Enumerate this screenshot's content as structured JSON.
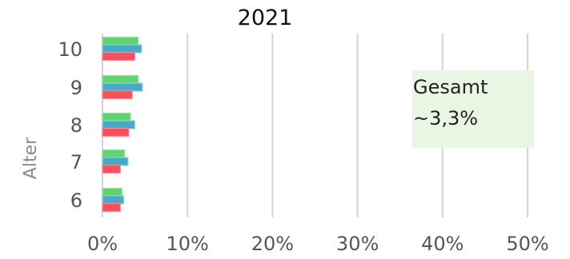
{
  "chart_data": {
    "type": "bar",
    "orientation": "horizontal",
    "title": "2021",
    "xlabel": "",
    "ylabel": "Alter",
    "categories": [
      "10",
      "9",
      "8",
      "7",
      "6"
    ],
    "xlim": [
      0,
      50
    ],
    "x_ticks": [
      "0%",
      "10%",
      "20%",
      "30%",
      "40%",
      "50%"
    ],
    "grid": true,
    "series": [
      {
        "color": "#5fd46f",
        "edge": "#8fe69a",
        "values": [
          4.2,
          4.2,
          3.3,
          2.6,
          2.3
        ]
      },
      {
        "color": "#4aa9c4",
        "edge": "#8fd0e2",
        "values": [
          4.6,
          4.7,
          3.8,
          3.0,
          2.5
        ]
      },
      {
        "color": "#f5505e",
        "edge": "#f98a94",
        "values": [
          3.8,
          3.5,
          3.1,
          2.1,
          2.1
        ]
      }
    ],
    "annotation": {
      "lines": [
        "Gesamt",
        "~3,3%"
      ],
      "background": "#e8f6e3"
    }
  }
}
